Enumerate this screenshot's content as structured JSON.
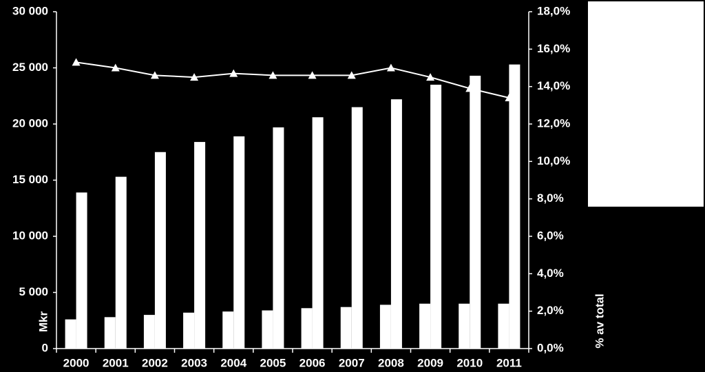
{
  "chart_data": {
    "type": "bar-line",
    "categories": [
      "2000",
      "2001",
      "2002",
      "2003",
      "2004",
      "2005",
      "2006",
      "2007",
      "2008",
      "2009",
      "2010",
      "2011"
    ],
    "series": [
      {
        "color": "#ffffff",
        "values": [
          2600,
          2800,
          3000,
          3200,
          3300,
          3400,
          3600,
          3700,
          3900,
          4000,
          4000,
          4000
        ]
      },
      {
        "color": "#ffffff",
        "values": [
          13900,
          15300,
          17500,
          18400,
          18900,
          19700,
          20600,
          21500,
          22200,
          23500,
          24300,
          25300
        ]
      },
      {
        "color": "#ffffff",
        "axis": "y2",
        "type": "line",
        "values": [
          15.3,
          15.0,
          14.6,
          14.5,
          14.7,
          14.6,
          14.6,
          14.6,
          15.0,
          14.5,
          13.9,
          13.4
        ]
      }
    ],
    "y_label": "Mkr",
    "y2_label": "% av total",
    "ylim": [
      0,
      30000
    ],
    "yticks": [
      {
        "value": 0,
        "label": "0"
      },
      {
        "value": 5000,
        "label": "5 000"
      },
      {
        "value": 10000,
        "label": "10 000"
      },
      {
        "value": 15000,
        "label": "15 000"
      },
      {
        "value": 20000,
        "label": "20 000"
      },
      {
        "value": 25000,
        "label": "25 000"
      },
      {
        "value": 30000,
        "label": "30 000"
      }
    ],
    "y2lim": [
      0,
      18
    ],
    "y2ticks": [
      {
        "value": 0,
        "label": "0,0%"
      },
      {
        "value": 2,
        "label": "2,0%"
      },
      {
        "value": 4,
        "label": "4,0%"
      },
      {
        "value": 6,
        "label": "6,0%"
      },
      {
        "value": 8,
        "label": "8,0%"
      },
      {
        "value": 10,
        "label": "10,0%"
      },
      {
        "value": 12,
        "label": "12,0%"
      },
      {
        "value": 14,
        "label": "14,0%"
      },
      {
        "value": 16,
        "label": "16,0%"
      },
      {
        "value": 18,
        "label": "18,0%"
      }
    ]
  }
}
